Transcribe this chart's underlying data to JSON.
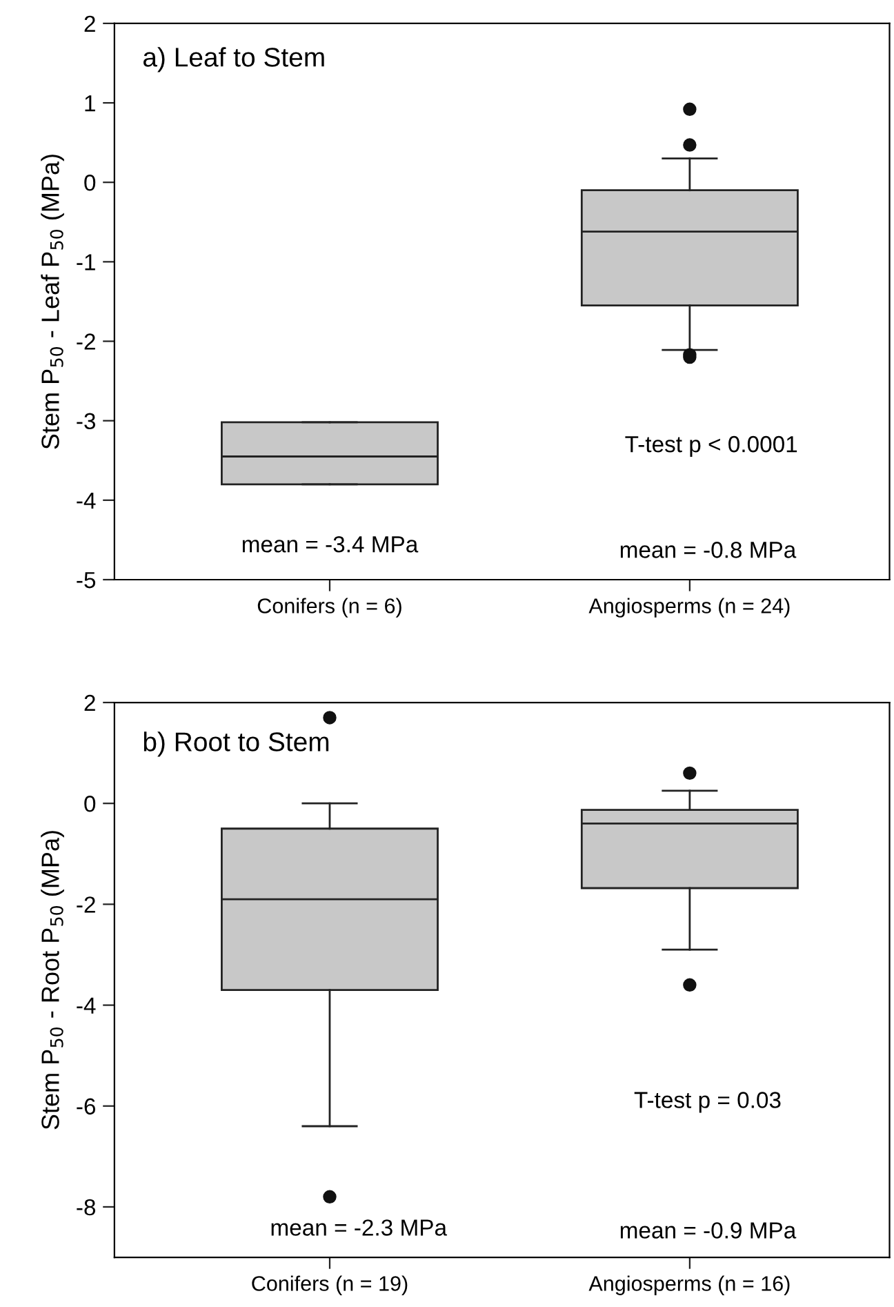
{
  "chart_data": [
    {
      "type": "box",
      "ylabel": "Stem P$_{50}$ - Leaf P$_{50}$ (MPa)",
      "categories": [
        "Conifers (n = 6)",
        "Angiosperms (n = 24)"
      ],
      "color": "#c8c8c8",
      "ylim": [
        -5,
        2
      ],
      "yticks": [
        -5,
        -4,
        -3,
        -2,
        -1,
        0,
        1,
        2
      ],
      "grid": false,
      "legend": false,
      "boxes": [
        {
          "low": -3.8,
          "q1": -3.8,
          "median": -3.45,
          "q3": -3.02,
          "high": -3.02
        },
        {
          "low": -2.11,
          "q1": -1.55,
          "median": -0.62,
          "q3": -0.1,
          "high": 0.3,
          "outliers": [
            0.92,
            0.47,
            -2.17,
            -2.2
          ]
        }
      ],
      "annotations": [
        "a) Leaf to Stem",
        "T-test p < 0.0001",
        "mean = -3.4 MPa",
        "mean = -0.8 MPa"
      ]
    },
    {
      "type": "box",
      "ylabel": "Stem P$_{50}$ - Root P$_{50}$ (MPa)",
      "categories": [
        "Conifers (n = 19)",
        "Angiosperms (n = 16)"
      ],
      "color": "#c8c8c8",
      "ylim": [
        -9,
        2
      ],
      "yticks": [
        -8,
        -6,
        -4,
        -2,
        0,
        2
      ],
      "grid": false,
      "legend": false,
      "boxes": [
        {
          "low": -6.4,
          "q1": -3.7,
          "median": -1.9,
          "q3": -0.5,
          "high": 0,
          "outliers": [
            1.7,
            -7.8
          ]
        },
        {
          "low": -2.9,
          "q1": -1.68,
          "median": -0.4,
          "q3": -0.13,
          "high": 0.25,
          "outliers": [
            0.6,
            -3.6
          ]
        }
      ],
      "annotations": [
        "b) Root to Stem",
        "T-test p = 0.03",
        "mean = -2.3 MPa",
        "mean = -0.9 MPa"
      ]
    }
  ]
}
